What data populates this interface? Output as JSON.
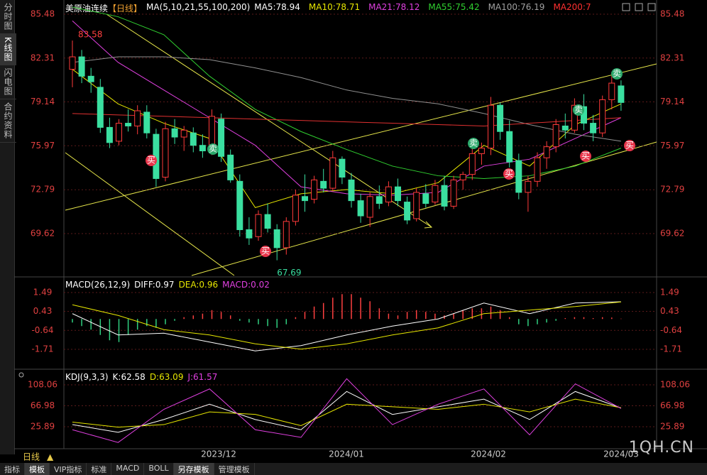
{
  "side_tabs": [
    "分时图",
    "K线图",
    "闪电图",
    "合约资料"
  ],
  "header": {
    "title": "美原油连续",
    "period": "【日线】",
    "ma_label": "MA(5,10,21,55,100,200)",
    "ma_values": [
      {
        "text": "MA5:78.94",
        "color": "#ffffff"
      },
      {
        "text": "MA10:78.71",
        "color": "#e6e600"
      },
      {
        "text": "MA21:78.12",
        "color": "#e040e0"
      },
      {
        "text": "MA55:75.42",
        "color": "#30d030"
      },
      {
        "text": "MA100:76.19",
        "color": "#a0a0a0"
      },
      {
        "text": "MA200:7",
        "color": "#ff3030"
      }
    ]
  },
  "price_panel": {
    "ylim": [
      66.59,
      86.51
    ],
    "yticks": [
      85.48,
      82.31,
      79.14,
      75.97,
      72.79,
      69.62
    ],
    "high_label": 83.58,
    "low_label": 67.69,
    "candles": [
      [
        81.5,
        83.58,
        80.2,
        82.4
      ],
      [
        82.4,
        82.9,
        80.5,
        81.0
      ],
      [
        81.0,
        81.6,
        79.8,
        80.6
      ],
      [
        80.2,
        80.8,
        76.9,
        77.3
      ],
      [
        77.3,
        78.0,
        75.8,
        76.2
      ],
      [
        76.3,
        77.9,
        76.0,
        77.6
      ],
      [
        77.6,
        78.6,
        77.0,
        77.4
      ],
      [
        77.4,
        78.9,
        76.8,
        78.5
      ],
      [
        78.4,
        78.9,
        76.5,
        76.9
      ],
      [
        76.8,
        77.2,
        73.0,
        73.6
      ],
      [
        73.7,
        77.7,
        73.4,
        77.2
      ],
      [
        77.2,
        77.9,
        76.1,
        76.6
      ],
      [
        76.6,
        77.4,
        75.6,
        77.1
      ],
      [
        76.9,
        77.3,
        75.5,
        76.0
      ],
      [
        76.0,
        76.8,
        75.1,
        75.6
      ],
      [
        75.6,
        78.6,
        75.3,
        78.1
      ],
      [
        77.9,
        78.3,
        74.8,
        75.2
      ],
      [
        75.3,
        75.7,
        73.3,
        73.5
      ],
      [
        73.4,
        73.9,
        69.4,
        69.9
      ],
      [
        69.9,
        70.8,
        68.8,
        69.3
      ],
      [
        69.4,
        71.3,
        69.1,
        71.0
      ],
      [
        71.0,
        71.8,
        69.7,
        70.0
      ],
      [
        69.9,
        70.3,
        67.69,
        68.6
      ],
      [
        68.6,
        70.8,
        68.1,
        70.5
      ],
      [
        70.5,
        72.8,
        70.2,
        72.4
      ],
      [
        72.3,
        73.9,
        71.2,
        72.0
      ],
      [
        72.1,
        73.8,
        71.8,
        73.5
      ],
      [
        73.4,
        74.3,
        72.6,
        72.9
      ],
      [
        72.9,
        75.6,
        72.7,
        75.1
      ],
      [
        75.0,
        75.2,
        73.2,
        73.7
      ],
      [
        73.5,
        74.0,
        71.5,
        72.0
      ],
      [
        72.0,
        72.5,
        70.4,
        70.9
      ],
      [
        70.8,
        72.6,
        70.1,
        72.3
      ],
      [
        72.3,
        73.1,
        71.4,
        71.8
      ],
      [
        71.9,
        73.4,
        71.6,
        73.0
      ],
      [
        73.0,
        73.6,
        71.6,
        72.0
      ],
      [
        71.9,
        72.3,
        70.3,
        70.6
      ],
      [
        70.7,
        72.9,
        70.5,
        72.6
      ],
      [
        72.5,
        73.2,
        71.5,
        71.8
      ],
      [
        71.9,
        73.5,
        71.7,
        73.1
      ],
      [
        73.1,
        73.8,
        71.3,
        71.6
      ],
      [
        71.6,
        73.8,
        71.4,
        73.5
      ],
      [
        73.5,
        74.1,
        72.8,
        73.9
      ],
      [
        73.9,
        75.8,
        73.5,
        75.4
      ],
      [
        75.4,
        76.2,
        74.6,
        75.8
      ],
      [
        75.8,
        79.5,
        75.3,
        78.9
      ],
      [
        78.9,
        79.1,
        76.4,
        77.0
      ],
      [
        77.0,
        77.8,
        74.4,
        74.8
      ],
      [
        74.9,
        75.4,
        72.1,
        72.6
      ],
      [
        72.6,
        73.8,
        71.2,
        73.4
      ],
      [
        73.4,
        75.5,
        73.0,
        75.1
      ],
      [
        75.1,
        76.3,
        74.3,
        75.9
      ],
      [
        75.9,
        77.9,
        75.5,
        77.5
      ],
      [
        77.4,
        78.3,
        76.5,
        77.1
      ],
      [
        77.1,
        79.4,
        76.9,
        78.9
      ],
      [
        78.8,
        79.7,
        77.1,
        77.6
      ],
      [
        77.6,
        78.2,
        76.3,
        76.9
      ],
      [
        76.9,
        79.6,
        76.6,
        79.3
      ],
      [
        79.3,
        81.3,
        78.6,
        80.5
      ],
      [
        80.3,
        80.7,
        78.5,
        79.1
      ]
    ],
    "up_color": "#ff3a3a",
    "down_color": "#3adfa0",
    "ma_lines": [
      {
        "color": "#e6e600",
        "values": [
          81.5,
          79,
          77.6,
          76.5,
          71.5,
          72.5,
          72.8,
          72.5,
          73.3,
          76,
          74.5,
          77.5,
          79
        ]
      },
      {
        "color": "#e040e0",
        "values": [
          85,
          82,
          80,
          78,
          76,
          73,
          72.5,
          72.4,
          72.6,
          74.5,
          75,
          76.5,
          78
        ]
      },
      {
        "color": "#30d030",
        "values": [
          86,
          85.3,
          84,
          81,
          78.6,
          77,
          75.7,
          74.5,
          73.8,
          73.6,
          73.8,
          74.5,
          75.8
        ]
      },
      {
        "color": "#909090",
        "values": [
          82,
          82.4,
          82.4,
          82.2,
          81.6,
          80.9,
          80,
          79.4,
          79,
          78.3,
          77.5,
          76.8,
          76.3
        ]
      },
      {
        "color": "#e03030",
        "values": [
          78.3,
          78.2,
          78.1,
          78.0,
          77.9,
          77.8,
          77.7,
          77.6,
          77.5,
          77.4,
          77.6,
          77.8,
          78.0
        ]
      }
    ]
  },
  "markers": [
    "买",
    "卖",
    "买",
    "卖",
    "买",
    "卖",
    "买",
    "卖",
    "买"
  ],
  "macd_panel": {
    "label": "MACD(26,12,9)",
    "diff": "DIFF:0.97",
    "dea": "DEA:0.96",
    "macd": "MACD:0.02",
    "ylim": [
      -2.75,
      2.17
    ],
    "yticks": [
      1.49,
      0.43,
      -0.64,
      -1.71
    ],
    "histogram": [
      -0.2,
      -0.4,
      -0.6,
      -0.9,
      -1.2,
      -1.3,
      -0.9,
      -0.6,
      -0.4,
      -0.5,
      -0.3,
      -0.1,
      0.1,
      0.2,
      0.3,
      0.5,
      0.4,
      0.2,
      -0.1,
      -0.2,
      -0.3,
      -0.4,
      -0.5,
      -0.3,
      0.1,
      0.4,
      0.7,
      0.9,
      1.2,
      1.4,
      1.4,
      1.2,
      1.0,
      0.6,
      0.3,
      0.2,
      0.4,
      0.5,
      0.4,
      0.3,
      0.2,
      0.3,
      0.5,
      0.6,
      0.6,
      0.7,
      0.5,
      0.1,
      -0.3,
      -0.4,
      -0.3,
      -0.2,
      -0.1,
      0.05,
      0.1,
      0.1,
      0.05,
      0.1,
      0.08,
      0.02
    ],
    "lines": [
      {
        "color": "#ffffff",
        "values": [
          0.3,
          -0.9,
          -0.8,
          -1.3,
          -1.8,
          -1.5,
          -0.9,
          -0.4,
          0,
          0.9,
          0.3,
          0.9,
          0.97
        ]
      },
      {
        "color": "#e6e600",
        "values": [
          0.8,
          0.2,
          -0.6,
          -0.9,
          -1.4,
          -1.7,
          -1.4,
          -0.9,
          -0.5,
          0.3,
          0.5,
          0.7,
          0.96
        ]
      }
    ]
  },
  "kdj_panel": {
    "label": "KDJ(9,3,3)",
    "k": "K:62.58",
    "d": "D:63.09",
    "j": "J:61.57",
    "ylim": [
      -11.7,
      131.7
    ],
    "yticks": [
      108.06,
      66.98,
      25.89
    ],
    "lines": [
      {
        "color": "#ffffff",
        "values": [
          30,
          15,
          40,
          70,
          40,
          20,
          95,
          50,
          65,
          80,
          40,
          95,
          62.58
        ]
      },
      {
        "color": "#e6e600",
        "values": [
          35,
          25,
          30,
          55,
          50,
          28,
          70,
          65,
          60,
          70,
          55,
          80,
          63.09
        ]
      },
      {
        "color": "#e040e0",
        "values": [
          20,
          -5,
          60,
          100,
          20,
          5,
          120,
          30,
          70,
          100,
          10,
          110,
          61.57
        ]
      }
    ]
  },
  "dates": [
    "2023/12",
    "2024/01",
    "2024/02",
    "2024/03"
  ],
  "bottom_label": "日线",
  "tabs": [
    "指标",
    "模板",
    "VIP指标",
    "标准",
    "MACD",
    "BOLL",
    "另存模板",
    "管理模板"
  ],
  "watermark": "1QH.CN"
}
